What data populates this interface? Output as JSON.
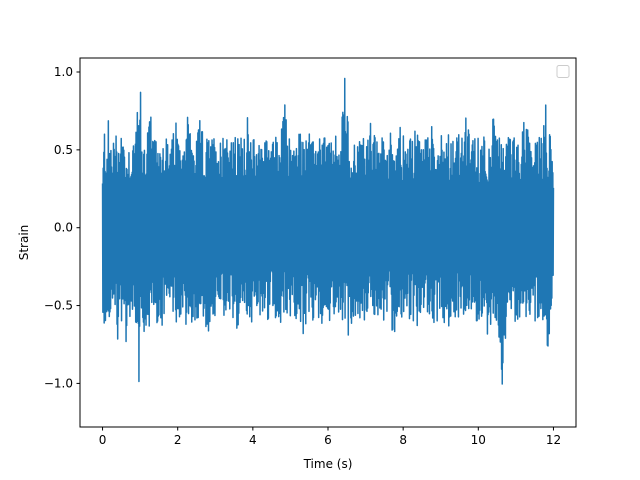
{
  "chart_data": {
    "type": "line",
    "title": "",
    "xlabel": "Time (s)",
    "ylabel": "Strain",
    "xlim": [
      -0.6,
      12.6
    ],
    "ylim": [
      -1.28,
      1.09
    ],
    "x_ticks": [
      0,
      2,
      4,
      6,
      8,
      10,
      12
    ],
    "x_tick_labels": [
      "0",
      "2",
      "4",
      "6",
      "8",
      "10",
      "12"
    ],
    "y_ticks": [
      -1.0,
      -0.5,
      0.0,
      0.5,
      1.0
    ],
    "y_tick_labels": [
      "−1.0",
      "−0.5",
      "0.0",
      "0.5",
      "1.0"
    ],
    "grid": false,
    "legend": {
      "placement": "top-right",
      "entries": []
    },
    "series": [
      {
        "color": "#1f77b4",
        "x_start": 0,
        "x_end": 12,
        "x": [
          0,
          0.05,
          0.1,
          0.14,
          0.2,
          0.26,
          0.32,
          0.4,
          0.48,
          0.56,
          0.6,
          0.7,
          0.78,
          0.86,
          0.9,
          0.98,
          1.0,
          1.06,
          1.14,
          1.26,
          1.36,
          1.46,
          1.56,
          1.66,
          1.76,
          1.86,
          1.96,
          2.06,
          2.16,
          2.26,
          2.38,
          2.5,
          2.6,
          2.7,
          2.8,
          2.92,
          3.02,
          3.12,
          3.22,
          3.36,
          3.46,
          3.56,
          3.66,
          3.76,
          3.86,
          3.96,
          4.06,
          4.16,
          4.28,
          4.4,
          4.5,
          4.62,
          4.74,
          4.86,
          4.98,
          5.1,
          5.22,
          5.34,
          5.46,
          5.58,
          5.7,
          5.82,
          5.94,
          6.06,
          6.18,
          6.3,
          6.44,
          6.56,
          6.68,
          6.8,
          6.92,
          7.04,
          7.16,
          7.28,
          7.4,
          7.52,
          7.64,
          7.76,
          7.88,
          8.0,
          8.12,
          8.24,
          8.36,
          8.48,
          8.6,
          8.72,
          8.84,
          8.96,
          9.08,
          9.2,
          9.32,
          9.44,
          9.56,
          9.68,
          9.8,
          9.92,
          10.04,
          10.16,
          10.28,
          10.4,
          10.52,
          10.64,
          10.76,
          10.88,
          11.0,
          11.12,
          11.24,
          11.36,
          11.48,
          11.6,
          11.72,
          11.8,
          11.84,
          11.9,
          11.96,
          12.0
        ],
        "upper": [
          0.35,
          0.68,
          0.57,
          0.72,
          0.62,
          0.55,
          0.66,
          0.58,
          0.7,
          0.62,
          0.5,
          0.55,
          0.58,
          0.62,
          0.82,
          0.6,
          1.0,
          0.55,
          0.58,
          0.78,
          0.55,
          0.6,
          0.58,
          0.65,
          0.52,
          0.58,
          0.72,
          0.55,
          0.6,
          0.78,
          0.55,
          0.55,
          0.72,
          0.55,
          0.6,
          0.58,
          0.65,
          0.55,
          0.72,
          0.62,
          0.55,
          0.6,
          0.58,
          0.65,
          0.72,
          0.55,
          0.6,
          0.58,
          0.65,
          0.55,
          0.72,
          0.58,
          0.6,
          0.82,
          0.58,
          0.55,
          0.65,
          0.6,
          0.72,
          0.55,
          0.6,
          0.58,
          0.65,
          0.55,
          0.6,
          0.55,
          1.0,
          0.62,
          0.55,
          0.6,
          0.58,
          0.65,
          0.72,
          0.55,
          0.6,
          0.58,
          0.65,
          0.55,
          0.72,
          0.6,
          0.55,
          0.58,
          0.65,
          0.55,
          0.6,
          0.72,
          0.55,
          0.6,
          0.58,
          0.65,
          0.55,
          0.62,
          0.6,
          0.72,
          0.55,
          0.6,
          0.58,
          0.65,
          0.55,
          0.72,
          0.6,
          0.55,
          0.58,
          0.65,
          0.55,
          0.6,
          0.72,
          0.62,
          0.55,
          0.6,
          0.58,
          0.88,
          0.55,
          0.65,
          0.6,
          0.33
        ],
        "lower": [
          -0.5,
          -0.75,
          -0.55,
          -0.6,
          -0.65,
          -0.55,
          -0.58,
          -0.72,
          -0.62,
          -0.55,
          -0.8,
          -0.58,
          -0.62,
          -0.6,
          -0.65,
          -1.2,
          -0.58,
          -0.62,
          -0.82,
          -0.6,
          -0.55,
          -0.62,
          -0.72,
          -0.58,
          -0.6,
          -0.55,
          -0.62,
          -0.58,
          -0.55,
          -0.72,
          -0.6,
          -0.62,
          -0.58,
          -0.6,
          -0.72,
          -0.55,
          -0.62,
          -0.58,
          -0.6,
          -0.55,
          -0.62,
          -0.72,
          -0.58,
          -0.6,
          -0.55,
          -0.62,
          -0.58,
          -0.6,
          -0.55,
          -0.62,
          -0.58,
          -0.6,
          -0.62,
          -0.55,
          -0.58,
          -0.6,
          -0.62,
          -0.72,
          -0.58,
          -0.6,
          -0.55,
          -0.62,
          -0.58,
          -0.6,
          -0.55,
          -0.62,
          -0.58,
          -0.72,
          -0.6,
          -0.55,
          -0.62,
          -0.58,
          -0.6,
          -0.55,
          -0.62,
          -0.58,
          -0.6,
          -0.72,
          -0.55,
          -0.62,
          -0.58,
          -0.6,
          -0.8,
          -0.58,
          -0.6,
          -0.55,
          -0.62,
          -0.58,
          -0.6,
          -0.72,
          -0.55,
          -0.62,
          -0.58,
          -0.6,
          -0.55,
          -0.62,
          -0.58,
          -0.6,
          -0.72,
          -0.55,
          -0.62,
          -1.03,
          -0.6,
          -0.55,
          -0.62,
          -0.58,
          -0.6,
          -0.55,
          -0.62,
          -0.58,
          -0.6,
          -0.55,
          -1.02,
          -0.6,
          -0.55,
          -0.32
        ]
      }
    ]
  }
}
